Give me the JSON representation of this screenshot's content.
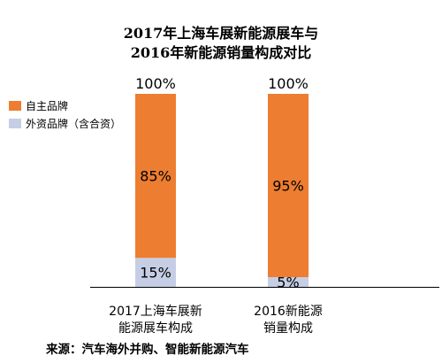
{
  "chart_data": {
    "type": "bar",
    "stacked": true,
    "title_lines": [
      "2017年上海车展新能源展车与",
      "2016年新能源销量构成对比"
    ],
    "categories": [
      {
        "lines": [
          "2017上海车展新",
          "能源展车构成"
        ]
      },
      {
        "lines": [
          "2016新能源",
          "销量构成"
        ]
      }
    ],
    "series": [
      {
        "name": "自主品牌",
        "color": "#ED7D31",
        "values": [
          85,
          95
        ],
        "labels": [
          "85%",
          "95%"
        ]
      },
      {
        "name": "外资品牌（含合资）",
        "color": "#C5CEE5",
        "values": [
          15,
          5
        ],
        "labels": [
          "15%",
          "5%"
        ]
      }
    ],
    "totals": [
      "100%",
      "100%"
    ],
    "ylim": [
      0,
      100
    ],
    "legend_position": "top-left",
    "grid": false
  },
  "source_text": "来源：汽车海外并购、智能新能源汽车"
}
